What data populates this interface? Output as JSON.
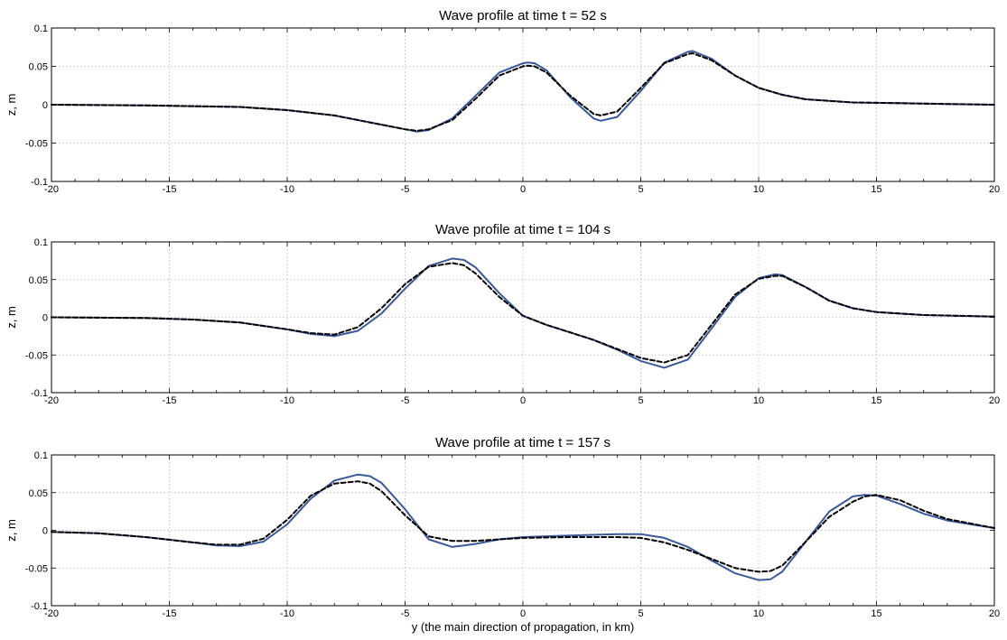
{
  "chart_data": [
    {
      "type": "line",
      "title": "Wave profile at time t = 52 s",
      "xlabel": "",
      "ylabel": "z, m",
      "xlim": [
        -20,
        20
      ],
      "ylim": [
        -0.1,
        0.1
      ],
      "xticks": [
        -20,
        -15,
        -10,
        -5,
        0,
        5,
        10,
        15,
        20
      ],
      "yticks": [
        -0.1,
        -0.05,
        0,
        0.05,
        0.1
      ],
      "ytick_labels": [
        "-0.1",
        "-0.05",
        "0",
        "0.05",
        "0.1"
      ],
      "grid": true,
      "series": [
        {
          "style": "solid",
          "color": "#3b5998",
          "x": [
            -20,
            -16,
            -12,
            -10,
            -8,
            -6,
            -5,
            -4.5,
            -4,
            -3,
            -2,
            -1,
            0,
            0.2,
            0.5,
            1,
            2,
            3,
            3.3,
            4,
            5,
            6,
            7,
            7.2,
            8,
            9,
            10,
            11,
            12,
            14,
            16,
            18,
            20
          ],
          "y": [
            0,
            -0.001,
            -0.003,
            -0.007,
            -0.014,
            -0.026,
            -0.032,
            -0.035,
            -0.033,
            -0.018,
            0.012,
            0.042,
            0.054,
            0.055,
            0.054,
            0.045,
            0.01,
            -0.018,
            -0.021,
            -0.016,
            0.018,
            0.055,
            0.069,
            0.07,
            0.06,
            0.038,
            0.022,
            0.013,
            0.007,
            0.003,
            0.002,
            0.001,
            0
          ]
        },
        {
          "style": "dashed",
          "color": "#000000",
          "x": [
            -20,
            -16,
            -12,
            -10,
            -8,
            -6,
            -5,
            -4.5,
            -4,
            -3,
            -2,
            -1,
            0,
            0.2,
            0.5,
            1,
            2,
            3,
            3.3,
            4,
            5,
            6,
            7,
            7.2,
            8,
            9,
            10,
            11,
            12,
            14,
            16,
            18,
            20
          ],
          "y": [
            0,
            -0.001,
            -0.003,
            -0.007,
            -0.014,
            -0.026,
            -0.032,
            -0.034,
            -0.032,
            -0.02,
            0.008,
            0.038,
            0.05,
            0.051,
            0.05,
            0.042,
            0.012,
            -0.012,
            -0.014,
            -0.009,
            0.022,
            0.054,
            0.066,
            0.067,
            0.058,
            0.038,
            0.022,
            0.013,
            0.007,
            0.003,
            0.002,
            0.001,
            0
          ]
        }
      ]
    },
    {
      "type": "line",
      "title": "Wave profile at time t = 104 s",
      "xlabel": "",
      "ylabel": "z, m",
      "xlim": [
        -20,
        20
      ],
      "ylim": [
        -0.1,
        0.1
      ],
      "xticks": [
        -20,
        -15,
        -10,
        -5,
        0,
        5,
        10,
        15,
        20
      ],
      "yticks": [
        -0.1,
        -0.05,
        0,
        0.05,
        0.1
      ],
      "ytick_labels": [
        "-0.1",
        "-0.05",
        "0",
        "0.05",
        "0.1"
      ],
      "grid": true,
      "series": [
        {
          "style": "solid",
          "color": "#3b5998",
          "x": [
            -20,
            -16,
            -14,
            -12,
            -10,
            -9,
            -8,
            -7,
            -6,
            -5,
            -4,
            -3,
            -2.5,
            -2,
            -1,
            0,
            1,
            2,
            3,
            4,
            5,
            6,
            7,
            8,
            9,
            10,
            10.7,
            11,
            12,
            13,
            14,
            15,
            17,
            20
          ],
          "y": [
            0,
            -0.001,
            -0.003,
            -0.007,
            -0.016,
            -0.022,
            -0.025,
            -0.018,
            0.005,
            0.038,
            0.068,
            0.078,
            0.076,
            0.066,
            0.032,
            0.002,
            -0.01,
            -0.02,
            -0.03,
            -0.043,
            -0.058,
            -0.067,
            -0.056,
            -0.015,
            0.027,
            0.052,
            0.057,
            0.056,
            0.04,
            0.022,
            0.012,
            0.007,
            0.003,
            0.001
          ]
        },
        {
          "style": "dashed",
          "color": "#000000",
          "x": [
            -20,
            -16,
            -14,
            -12,
            -10,
            -9,
            -8,
            -7,
            -6,
            -5,
            -4,
            -3,
            -2.5,
            -2,
            -1,
            0,
            1,
            2,
            3,
            4,
            5,
            6,
            7,
            8,
            9,
            10,
            10.7,
            11,
            12,
            13,
            14,
            15,
            17,
            20
          ],
          "y": [
            0,
            -0.001,
            -0.003,
            -0.007,
            -0.016,
            -0.021,
            -0.023,
            -0.013,
            0.012,
            0.044,
            0.067,
            0.072,
            0.069,
            0.058,
            0.027,
            0.002,
            -0.01,
            -0.02,
            -0.03,
            -0.042,
            -0.054,
            -0.06,
            -0.05,
            -0.01,
            0.03,
            0.051,
            0.055,
            0.055,
            0.04,
            0.022,
            0.012,
            0.007,
            0.003,
            0.001
          ]
        }
      ]
    },
    {
      "type": "line",
      "title": "Wave profile at time t = 157 s",
      "xlabel": "y (the main direction of propagation, in km)",
      "ylabel": "z, m",
      "xlim": [
        -20,
        20
      ],
      "ylim": [
        -0.1,
        0.1
      ],
      "xticks": [
        -20,
        -15,
        -10,
        -5,
        0,
        5,
        10,
        15,
        20
      ],
      "yticks": [
        -0.1,
        -0.05,
        0,
        0.05,
        0.1
      ],
      "ytick_labels": [
        "-0.1",
        "-0.05",
        "0",
        "0.05",
        "0.1"
      ],
      "grid": true,
      "series": [
        {
          "style": "solid",
          "color": "#3b5998",
          "x": [
            -20,
            -18,
            -16,
            -14,
            -13,
            -12,
            -11,
            -10,
            -9,
            -8,
            -7,
            -6.5,
            -6,
            -5,
            -4,
            -3,
            -2,
            -1,
            0,
            2,
            4,
            5,
            6,
            7,
            8,
            9,
            10,
            10.5,
            11,
            12,
            13,
            14,
            14.5,
            15,
            16,
            17,
            18,
            20
          ],
          "y": [
            -0.002,
            -0.004,
            -0.009,
            -0.016,
            -0.02,
            -0.021,
            -0.015,
            0.008,
            0.042,
            0.066,
            0.074,
            0.072,
            0.063,
            0.028,
            -0.012,
            -0.022,
            -0.018,
            -0.012,
            -0.009,
            -0.007,
            -0.005,
            -0.005,
            -0.01,
            -0.022,
            -0.04,
            -0.057,
            -0.066,
            -0.065,
            -0.055,
            -0.015,
            0.025,
            0.045,
            0.047,
            0.046,
            0.035,
            0.022,
            0.013,
            0.003
          ]
        },
        {
          "style": "dashed",
          "color": "#000000",
          "x": [
            -20,
            -18,
            -16,
            -14,
            -13,
            -12,
            -11,
            -10,
            -9,
            -8,
            -7,
            -6.5,
            -6,
            -5,
            -4,
            -3,
            -2,
            -1,
            0,
            2,
            4,
            5,
            6,
            7,
            8,
            9,
            10,
            10.5,
            11,
            12,
            13,
            14,
            14.5,
            15,
            16,
            17,
            18,
            20
          ],
          "y": [
            -0.002,
            -0.004,
            -0.009,
            -0.016,
            -0.019,
            -0.019,
            -0.011,
            0.014,
            0.046,
            0.062,
            0.065,
            0.062,
            0.052,
            0.02,
            -0.008,
            -0.014,
            -0.014,
            -0.012,
            -0.01,
            -0.009,
            -0.009,
            -0.01,
            -0.016,
            -0.026,
            -0.038,
            -0.05,
            -0.055,
            -0.054,
            -0.047,
            -0.015,
            0.018,
            0.038,
            0.045,
            0.047,
            0.04,
            0.026,
            0.015,
            0.003
          ]
        }
      ]
    }
  ]
}
